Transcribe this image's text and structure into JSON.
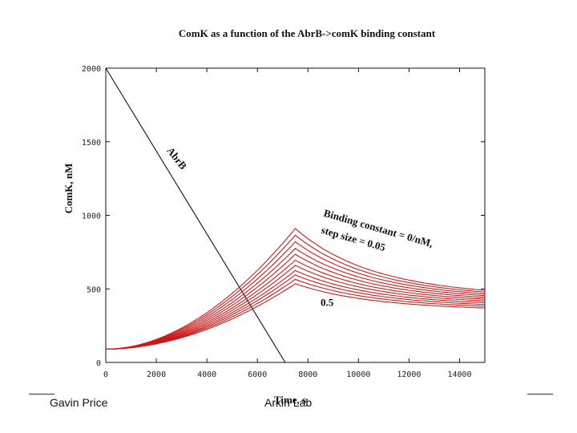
{
  "chart_data": {
    "type": "line",
    "title": "ComK as a function of the AbrB->comK binding constant",
    "xlabel": "Time, s",
    "ylabel": "ComK, nM",
    "xlim": [
      0,
      15000
    ],
    "ylim": [
      0,
      2000
    ],
    "x_ticks": [
      "0",
      "2000",
      "4000",
      "6000",
      "8000",
      "10000",
      "12000",
      "14000"
    ],
    "y_ticks": [
      "0",
      "500",
      "1000",
      "1500",
      "2000"
    ],
    "grid": false,
    "legend": "none",
    "colors": {
      "comk": "#cc1a1a",
      "abrb": "#111111",
      "frame": "#111111"
    },
    "series": [
      {
        "name": "AbrB",
        "color": "#111111",
        "x": [
          0,
          7100
        ],
        "y": [
          2000,
          0
        ]
      },
      {
        "name": "ComK, binding constant 0",
        "color": "#cc1a1a",
        "start": 90,
        "peak_x": 7500,
        "peak_y": 910,
        "end_y": 490
      },
      {
        "color": "#cc1a1a",
        "start": 90,
        "peak_x": 7500,
        "peak_y": 865,
        "end_y": 478
      },
      {
        "color": "#cc1a1a",
        "start": 90,
        "peak_x": 7500,
        "peak_y": 820,
        "end_y": 466
      },
      {
        "color": "#cc1a1a",
        "start": 90,
        "peak_x": 7500,
        "peak_y": 775,
        "end_y": 454
      },
      {
        "color": "#cc1a1a",
        "start": 90,
        "peak_x": 7500,
        "peak_y": 735,
        "end_y": 442
      },
      {
        "color": "#cc1a1a",
        "start": 90,
        "peak_x": 7500,
        "peak_y": 695,
        "end_y": 430
      },
      {
        "color": "#cc1a1a",
        "start": 90,
        "peak_x": 7500,
        "peak_y": 660,
        "end_y": 418
      },
      {
        "color": "#cc1a1a",
        "start": 90,
        "peak_x": 7500,
        "peak_y": 625,
        "end_y": 406
      },
      {
        "color": "#cc1a1a",
        "start": 90,
        "peak_x": 7500,
        "peak_y": 595,
        "end_y": 394
      },
      {
        "color": "#cc1a1a",
        "start": 90,
        "peak_x": 7500,
        "peak_y": 565,
        "end_y": 382
      },
      {
        "name": "ComK, binding constant 0.5",
        "color": "#cc1a1a",
        "start": 90,
        "peak_x": 7500,
        "peak_y": 535,
        "end_y": 370
      }
    ],
    "annotations": [
      {
        "text": "AbrB",
        "x": 2400,
        "y": 1440,
        "rotate": 52
      },
      {
        "text": "Binding constant = 0/nM,",
        "x": 8600,
        "y": 995,
        "rotate": 16
      },
      {
        "text": "step size = 0.05",
        "x": 8500,
        "y": 880,
        "rotate": 16
      },
      {
        "text": "0.5",
        "x": 8500,
        "y": 385,
        "rotate": 0
      }
    ]
  },
  "footer": {
    "left": "Gavin Price",
    "center": "Arkin Lab"
  }
}
